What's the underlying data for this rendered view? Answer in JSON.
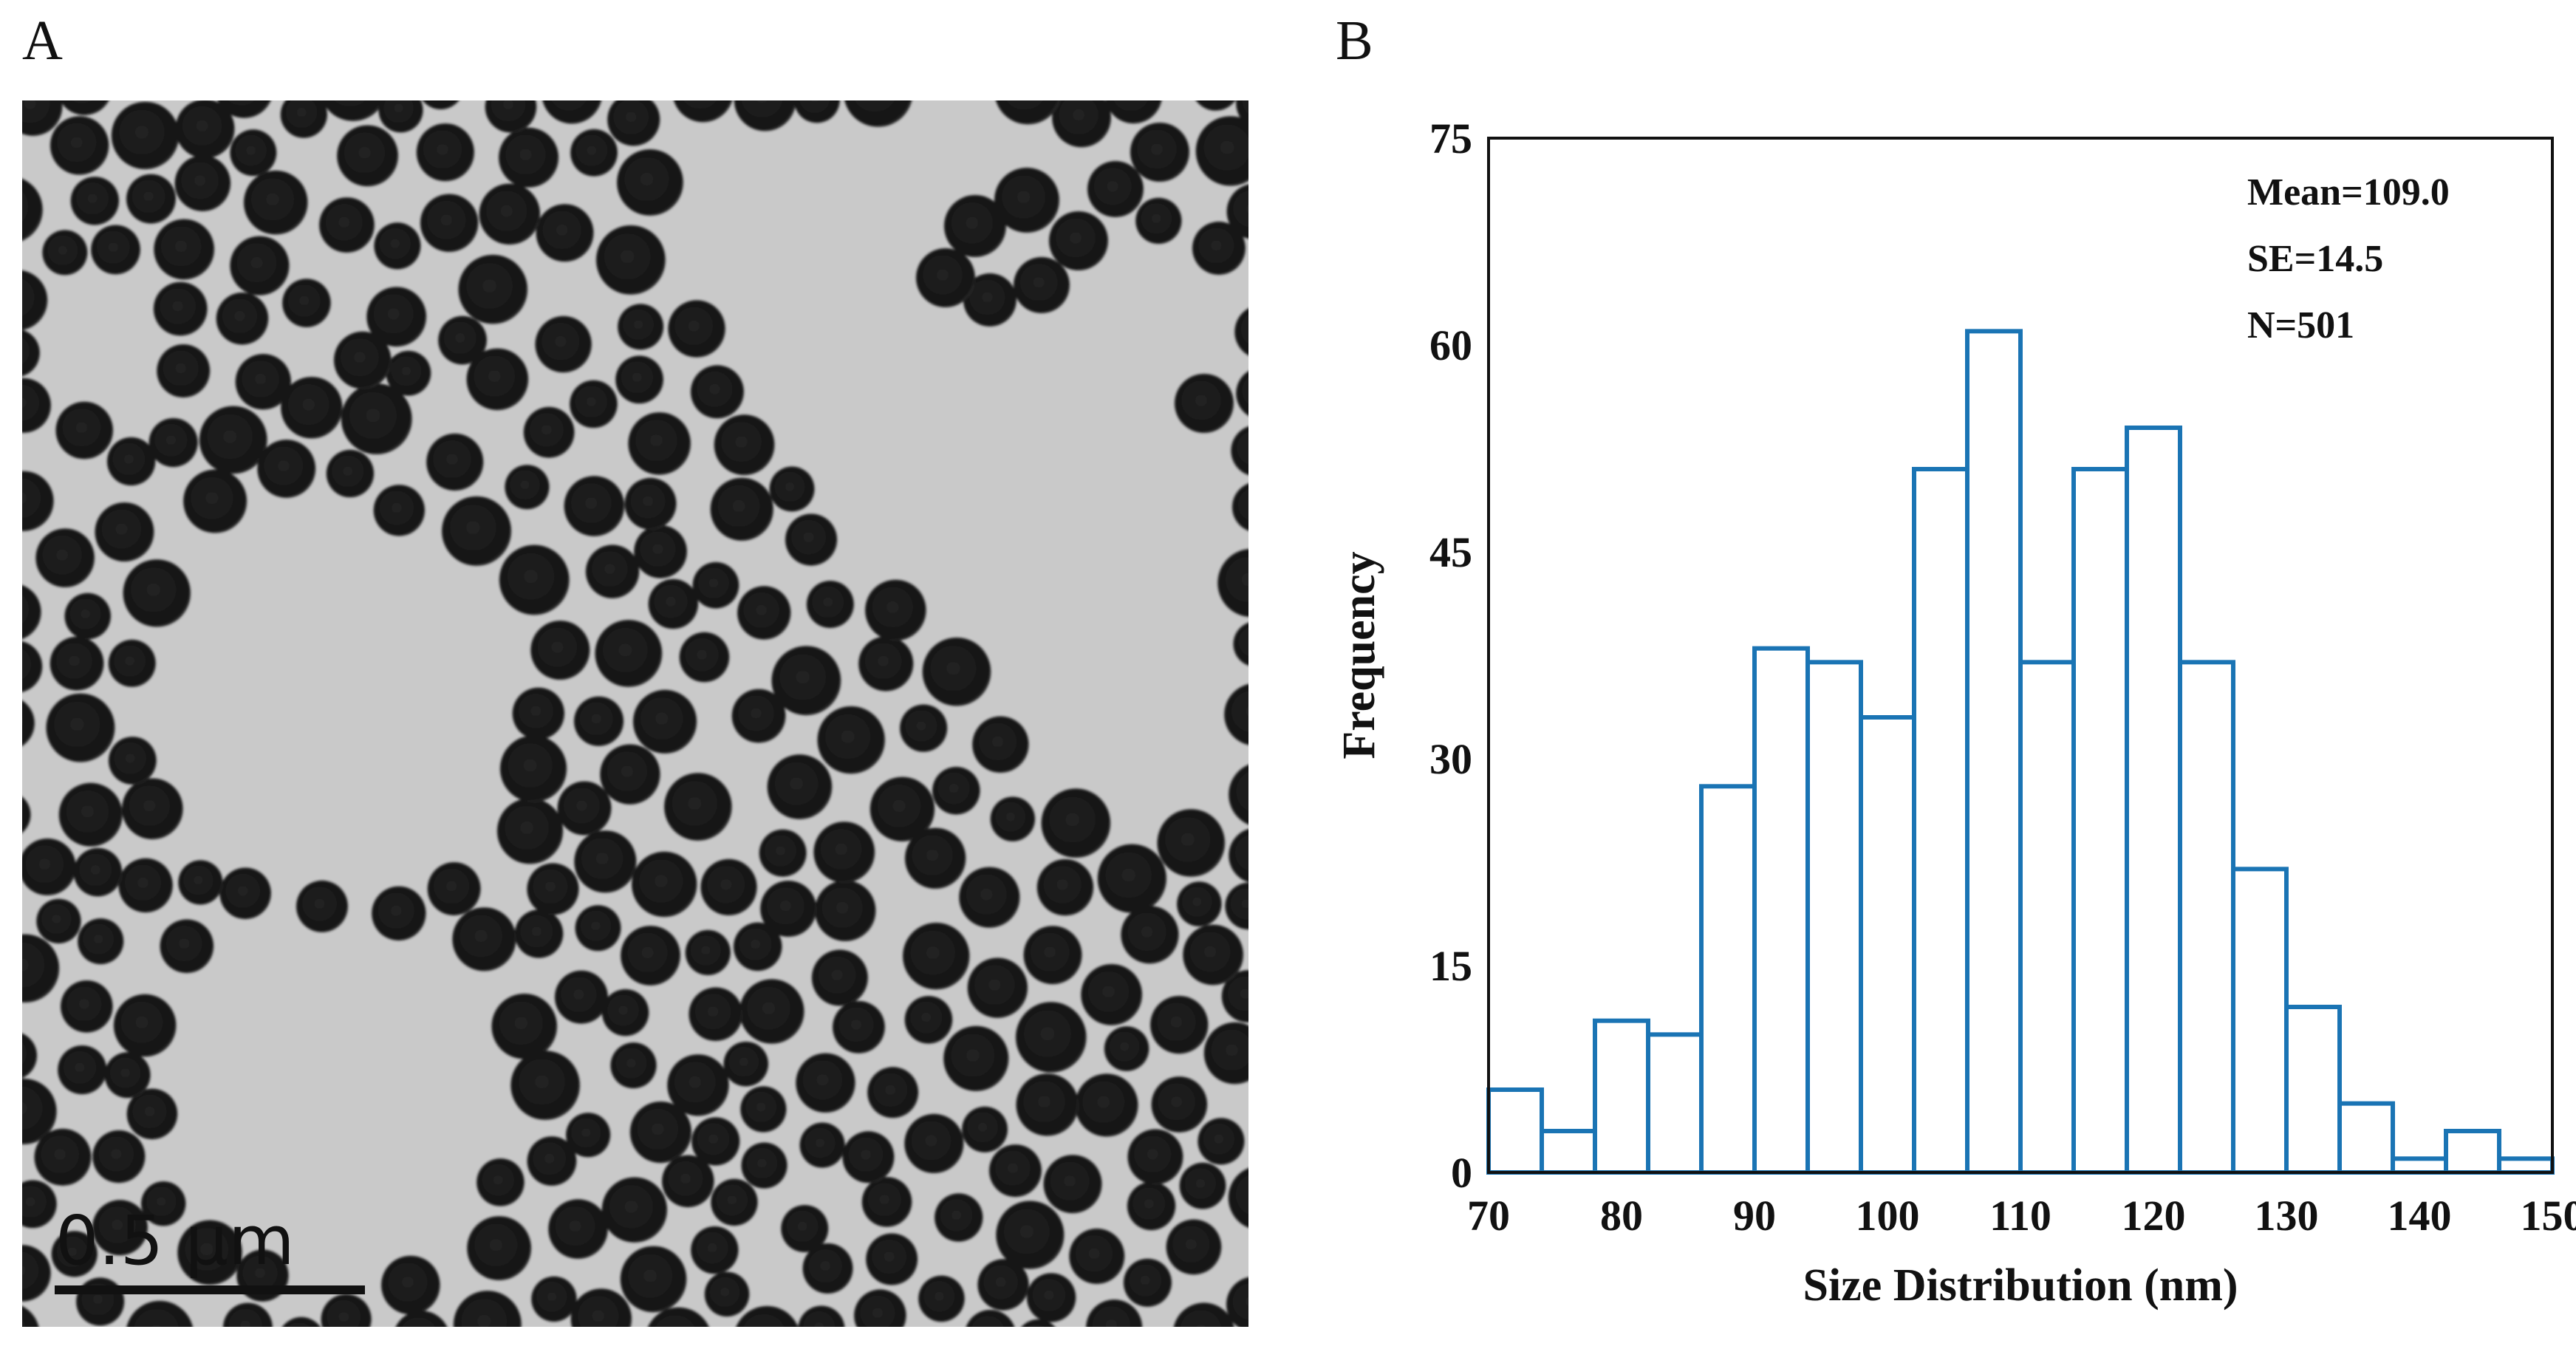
{
  "panels": {
    "a_label": "A",
    "b_label": "B"
  },
  "tem": {
    "scale_bar_label": "0.5 μm",
    "background_color": "#c9c9c9",
    "particle_color": "#1a1a1a"
  },
  "chart_data": {
    "type": "bar",
    "style": "histogram",
    "bar_color": "#1a74b4",
    "bin_edges": [
      70,
      74,
      78,
      82,
      86,
      90,
      94,
      98,
      102,
      106,
      110,
      114,
      118,
      122,
      126,
      130,
      134,
      138,
      142,
      146,
      150
    ],
    "values": [
      6,
      3,
      11,
      10,
      28,
      38,
      37,
      33,
      51,
      61,
      37,
      51,
      54,
      37,
      22,
      12,
      5,
      1,
      3,
      1
    ],
    "xlim": [
      70,
      150
    ],
    "ylim": [
      0,
      75
    ],
    "x_ticks": [
      "70",
      "80",
      "90",
      "100",
      "110",
      "120",
      "130",
      "140",
      "150"
    ],
    "y_ticks": [
      "0",
      "15",
      "30",
      "45",
      "60",
      "75"
    ],
    "xlabel": "Size Distribution (nm)",
    "ylabel": "Frequency",
    "annotations": [
      "Mean=109.0",
      "SE=14.5",
      "N=501"
    ],
    "legend": "none",
    "grid": false
  }
}
